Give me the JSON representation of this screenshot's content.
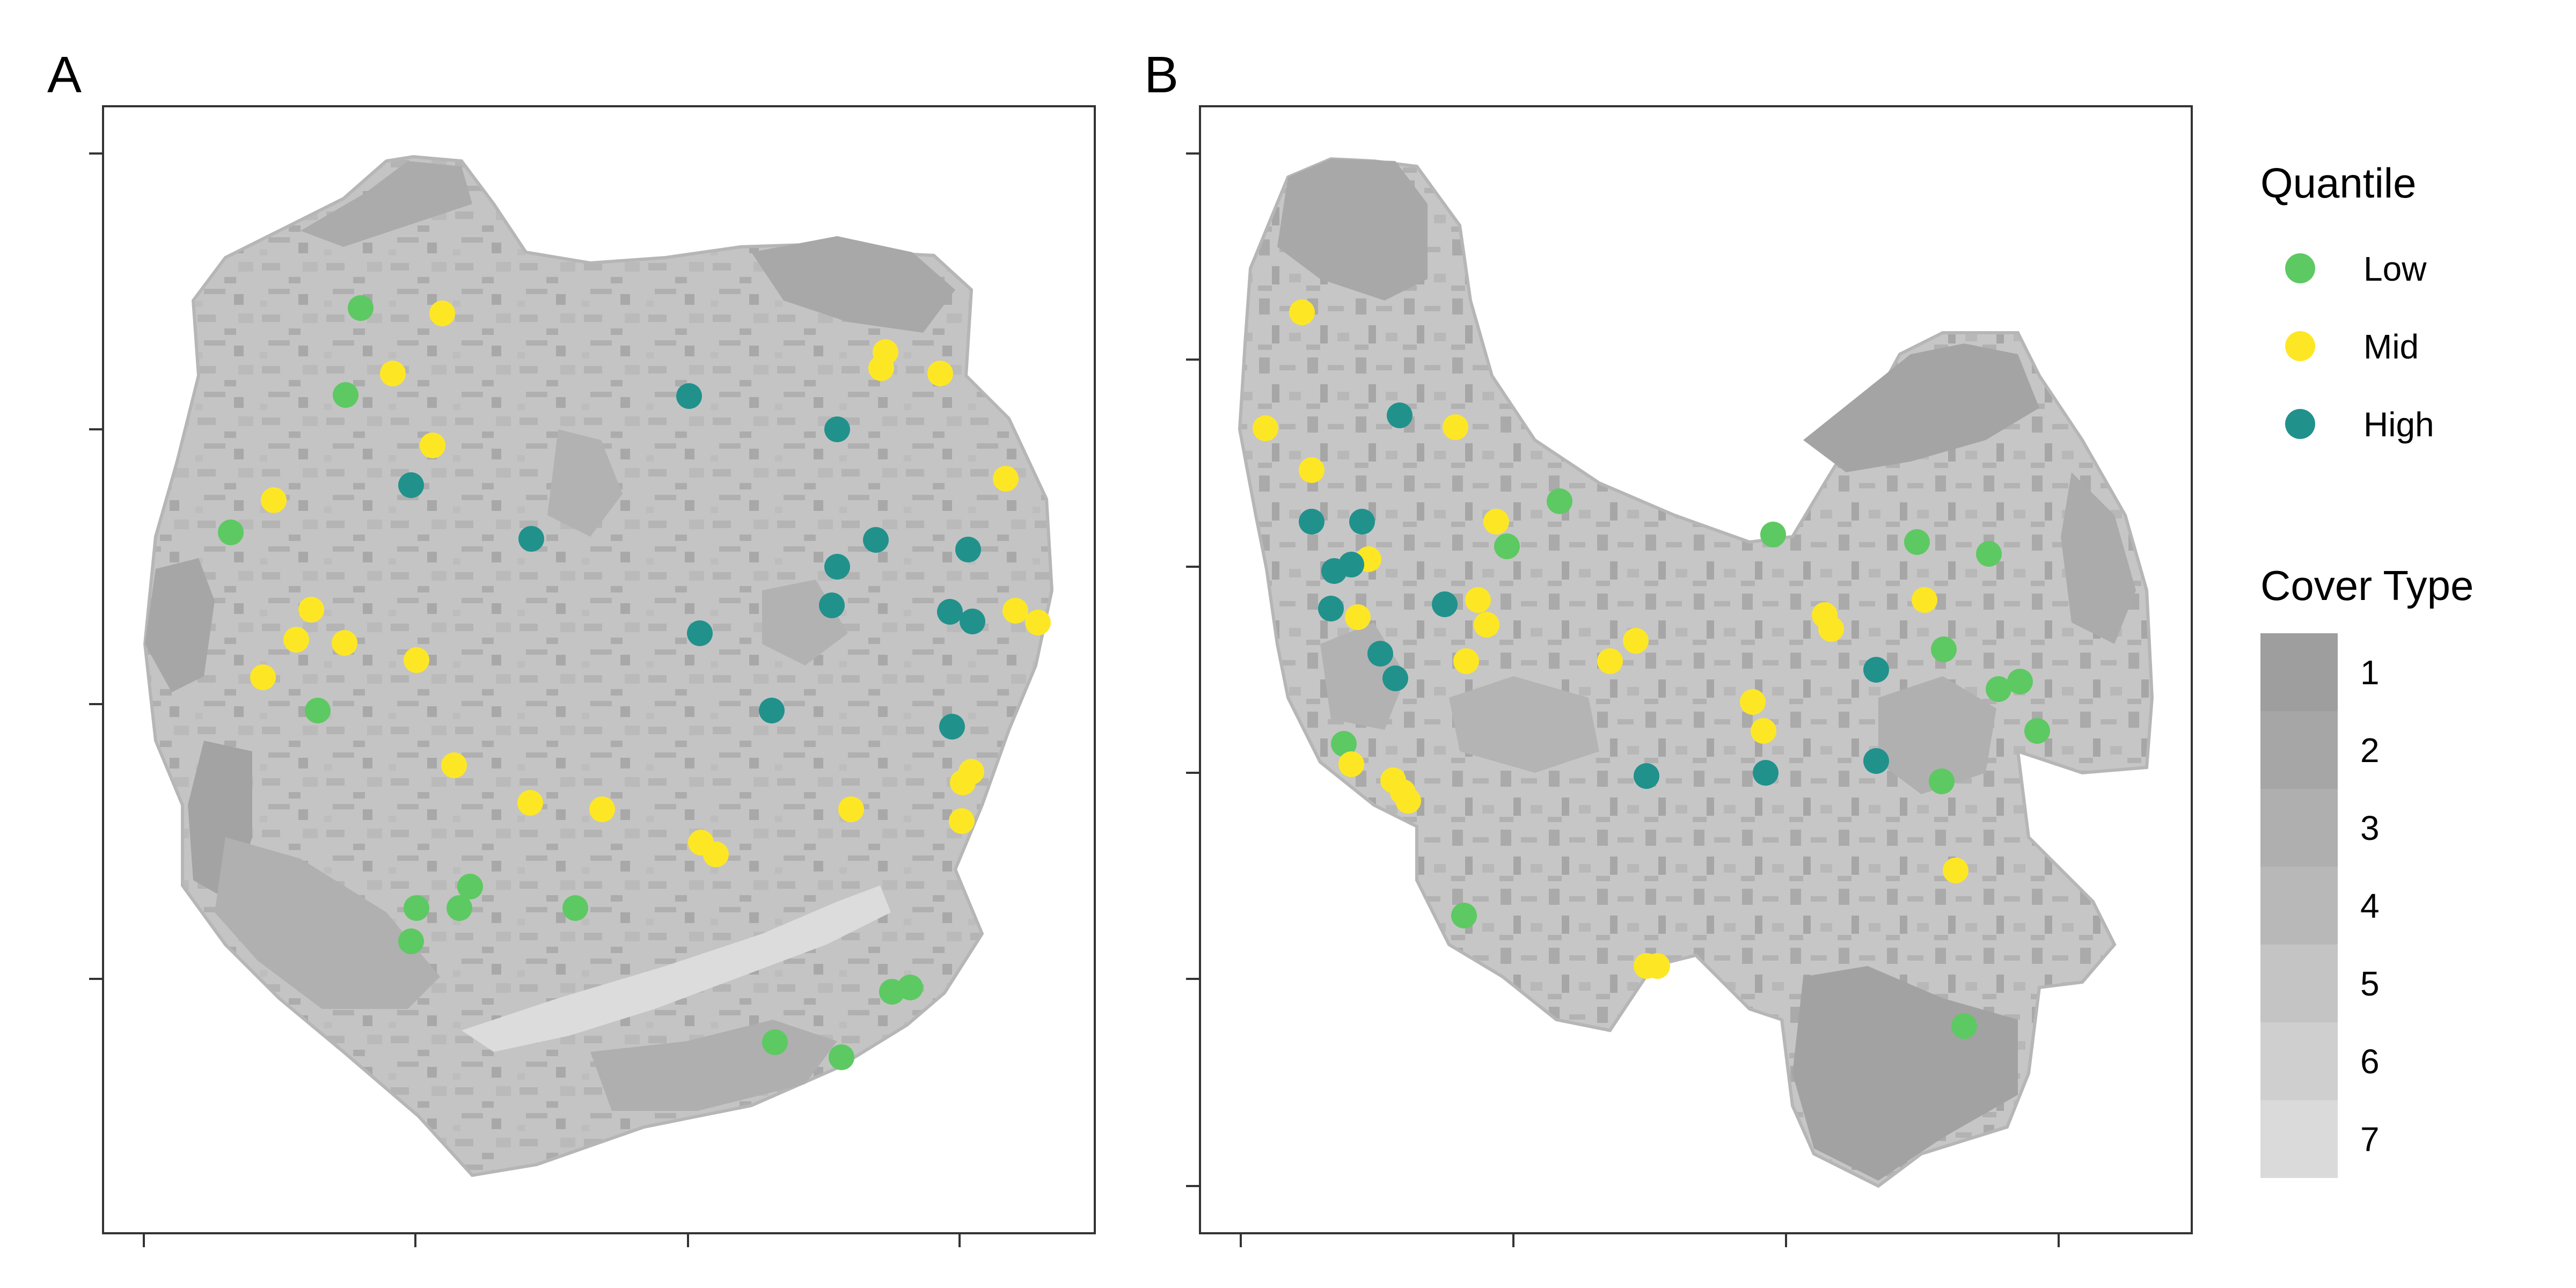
{
  "panels": [
    {
      "id": "A",
      "label": "A"
    },
    {
      "id": "B",
      "label": "B"
    }
  ],
  "legend": {
    "quantile_title": "Quantile",
    "quantile_items": [
      {
        "label": "Low",
        "color": "#5DC962"
      },
      {
        "label": "Mid",
        "color": "#FDE725"
      },
      {
        "label": "High",
        "color": "#21918C"
      }
    ],
    "cover_title": "Cover Type",
    "cover_items": [
      {
        "label": "1",
        "color": "#9E9E9E"
      },
      {
        "label": "2",
        "color": "#A6A6A6"
      },
      {
        "label": "3",
        "color": "#AFAFAF"
      },
      {
        "label": "4",
        "color": "#B8B8B8"
      },
      {
        "label": "5",
        "color": "#C4C4C4"
      },
      {
        "label": "6",
        "color": "#CFCFCF"
      },
      {
        "label": "7",
        "color": "#DADADA"
      }
    ]
  },
  "map_style": {
    "background_color": "#FFFFFF",
    "region_base_color": "#C4C4C4",
    "dark_patch_color": "#A2A2A2",
    "mid_patch_color": "#B6B6B6",
    "light_patch_color": "#DCDCDC"
  }
}
